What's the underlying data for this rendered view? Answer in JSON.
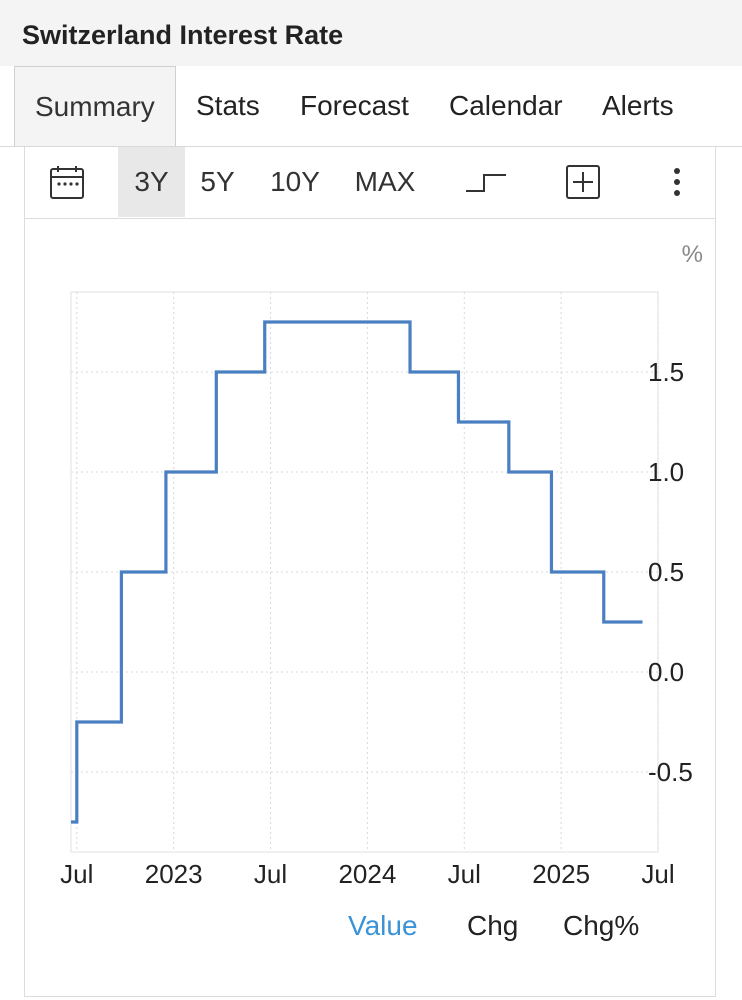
{
  "header": {
    "title": "Switzerland Interest Rate"
  },
  "tabs": [
    {
      "label": "Summary"
    },
    {
      "label": "Stats"
    },
    {
      "label": "Forecast"
    },
    {
      "label": "Calendar"
    },
    {
      "label": "Alerts"
    }
  ],
  "toolbar": {
    "ranges": [
      "3Y",
      "5Y",
      "10Y",
      "MAX"
    ],
    "selected_range": "3Y",
    "icons": [
      "calendar-icon",
      "step-line-icon",
      "add-icon",
      "more-vertical-icon"
    ]
  },
  "legend": {
    "value_label": "Value",
    "chg_label": "Chg",
    "chgpct_label": "Chg%",
    "active_color": "#3a93d6"
  },
  "chart_data": {
    "type": "line",
    "step": true,
    "title": "",
    "unit_label": "%",
    "color": "#4a7fc1",
    "x_range": [
      2022.47,
      2025.5
    ],
    "x_ticks": [
      {
        "x": 2022.5,
        "label": "Jul"
      },
      {
        "x": 2023.0,
        "label": "2023"
      },
      {
        "x": 2023.5,
        "label": "Jul"
      },
      {
        "x": 2024.0,
        "label": "2024"
      },
      {
        "x": 2024.5,
        "label": "Jul"
      },
      {
        "x": 2025.0,
        "label": "2025"
      },
      {
        "x": 2025.5,
        "label": "Jul"
      }
    ],
    "y_ticks": [
      1.5,
      1.0,
      0.5,
      0.0,
      -0.5
    ],
    "y_tick_labels": [
      "1.5",
      "1.0",
      "0.5",
      "0.0",
      "-0.5"
    ],
    "ylim": [
      -0.9,
      1.9
    ],
    "grid": true,
    "points": [
      {
        "x": 2022.47,
        "y": -0.75
      },
      {
        "x": 2022.5,
        "y": -0.25
      },
      {
        "x": 2022.73,
        "y": 0.5
      },
      {
        "x": 2022.96,
        "y": 1.0
      },
      {
        "x": 2023.22,
        "y": 1.5
      },
      {
        "x": 2023.47,
        "y": 1.75
      },
      {
        "x": 2024.22,
        "y": 1.5
      },
      {
        "x": 2024.47,
        "y": 1.25
      },
      {
        "x": 2024.73,
        "y": 1.0
      },
      {
        "x": 2024.95,
        "y": 0.5
      },
      {
        "x": 2025.22,
        "y": 0.25
      },
      {
        "x": 2025.42,
        "y": 0.25
      }
    ]
  }
}
